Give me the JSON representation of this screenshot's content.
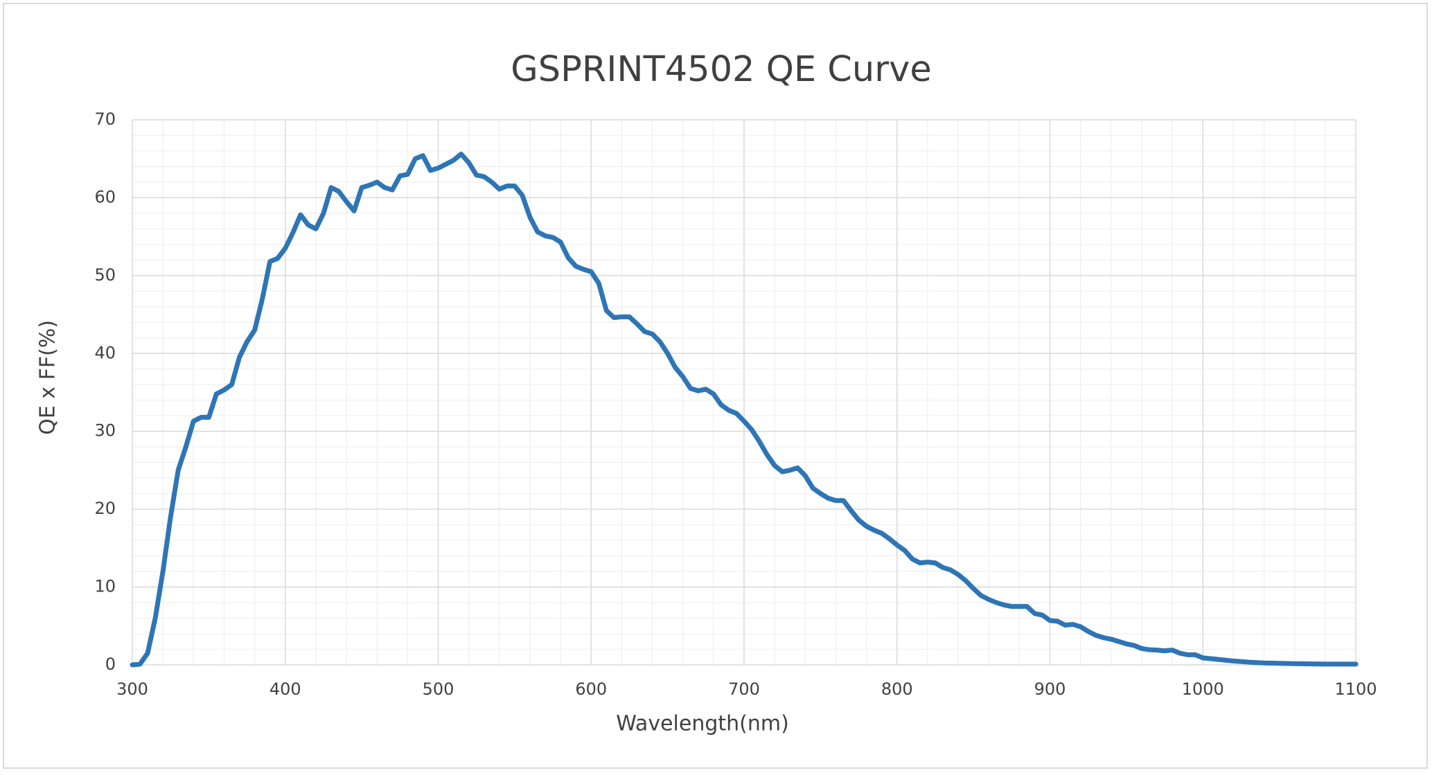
{
  "chart_data": {
    "type": "line",
    "title": "GSPRINT4502 QE  Curve",
    "x_label": "Wavelength(nm)",
    "y_label": "QE x FF(%)",
    "xlim": [
      300,
      1100
    ],
    "xticks": [
      300,
      400,
      500,
      600,
      700,
      800,
      900,
      1000,
      1100
    ],
    "ylim": [
      0,
      70
    ],
    "yticks": [
      0,
      10,
      20,
      30,
      40,
      50,
      60,
      70
    ],
    "grid": true,
    "x": [
      300,
      305,
      310,
      315,
      320,
      325,
      330,
      335,
      340,
      345,
      350,
      355,
      360,
      365,
      370,
      375,
      380,
      385,
      390,
      395,
      400,
      405,
      410,
      415,
      420,
      425,
      430,
      435,
      440,
      445,
      450,
      455,
      460,
      465,
      470,
      475,
      480,
      485,
      490,
      495,
      500,
      505,
      510,
      515,
      520,
      525,
      530,
      535,
      540,
      545,
      550,
      555,
      560,
      565,
      570,
      575,
      580,
      585,
      590,
      595,
      600,
      605,
      610,
      615,
      620,
      625,
      630,
      635,
      640,
      645,
      650,
      655,
      660,
      665,
      670,
      675,
      680,
      685,
      690,
      695,
      700,
      705,
      710,
      715,
      720,
      725,
      730,
      735,
      740,
      745,
      750,
      755,
      760,
      765,
      770,
      775,
      780,
      785,
      790,
      795,
      800,
      805,
      810,
      815,
      820,
      825,
      830,
      835,
      840,
      845,
      850,
      855,
      860,
      865,
      870,
      875,
      880,
      885,
      890,
      895,
      900,
      905,
      910,
      915,
      920,
      925,
      930,
      935,
      940,
      945,
      950,
      955,
      960,
      965,
      970,
      975,
      980,
      985,
      990,
      995,
      1000,
      1010,
      1020,
      1030,
      1040,
      1050,
      1060,
      1080,
      1100
    ],
    "series": [
      {
        "name": "QE x FF(%)",
        "color": "#2e75b6",
        "values": [
          0,
          0.1,
          1.5,
          6,
          12,
          19,
          25,
          28,
          31.3,
          31.8,
          31.8,
          34.8,
          35.3,
          36,
          39.5,
          41.5,
          43,
          47,
          51.8,
          52.2,
          53.5,
          55.5,
          57.8,
          56.5,
          56,
          58,
          61.3,
          60.8,
          59.5,
          58.3,
          61.3,
          61.6,
          62,
          61.3,
          61,
          62.8,
          63,
          65,
          65.4,
          63.5,
          63.8,
          64.3,
          64.8,
          65.6,
          64.5,
          62.9,
          62.7,
          62,
          61.1,
          61.5,
          61.5,
          60.3,
          57.5,
          55.6,
          55.1,
          54.9,
          54.3,
          52.3,
          51.2,
          50.8,
          50.5,
          49,
          45.5,
          44.6,
          44.7,
          44.7,
          43.8,
          42.8,
          42.5,
          41.5,
          40,
          38.2,
          37,
          35.5,
          35.2,
          35.4,
          34.8,
          33.4,
          32.7,
          32.3,
          31.3,
          30.2,
          28.7,
          27,
          25.6,
          24.8,
          25,
          25.3,
          24.3,
          22.7,
          22,
          21.4,
          21.1,
          21.1,
          19.8,
          18.6,
          17.8,
          17.3,
          16.9,
          16.2,
          15.4,
          14.7,
          13.6,
          13.1,
          13.2,
          13.1,
          12.5,
          12.2,
          11.6,
          10.8,
          9.8,
          8.9,
          8.4,
          8,
          7.7,
          7.5,
          7.5,
          7.5,
          6.6,
          6.4,
          5.7,
          5.6,
          5.1,
          5.2,
          4.9,
          4.3,
          3.8,
          3.5,
          3.3,
          3,
          2.7,
          2.5,
          2.1,
          1.95,
          1.9,
          1.8,
          1.9,
          1.5,
          1.3,
          1.3,
          0.9,
          0.7,
          0.5,
          0.35,
          0.25,
          0.2,
          0.15,
          0.1,
          0.1
        ]
      }
    ]
  }
}
